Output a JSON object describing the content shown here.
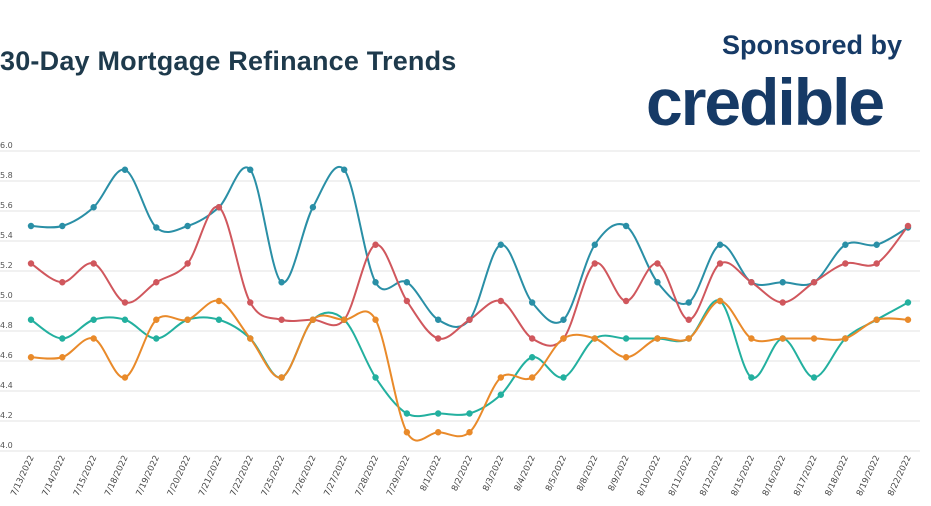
{
  "header": {
    "title": "30-Day Mortgage Refinance Trends",
    "sponsor_text": "Sponsored by",
    "sponsor_brand": "credible"
  },
  "chart_data": {
    "type": "line",
    "title": "30-Day Mortgage Refinance Trends",
    "xlabel": "",
    "ylabel": "",
    "ylim": [
      4.0,
      6.0
    ],
    "yticks": [
      "6.0",
      "5.8",
      "5.6",
      "5.4",
      "5.2",
      "5.0",
      "4.8",
      "4.6",
      "4.4",
      "4.2",
      "4.0"
    ],
    "grid": true,
    "categories": [
      "7/13/2022",
      "7/14/2022",
      "7/15/2022",
      "7/18/2022",
      "7/19/2022",
      "7/20/2022",
      "7/21/2022",
      "7/22/2022",
      "7/25/2022",
      "7/26/2022",
      "7/27/2022",
      "7/28/2022",
      "7/29/2022",
      "8/1/2022",
      "8/2/2022",
      "8/3/2022",
      "8/4/2022",
      "8/5/2022",
      "8/8/2022",
      "8/9/2022",
      "8/10/2022",
      "8/11/2022",
      "8/12/2022",
      "8/15/2022",
      "8/16/2022",
      "8/17/2022",
      "8/18/2022",
      "8/19/2022",
      "8/22/2022"
    ],
    "series": [
      {
        "color": "#2a8fa6",
        "values": [
          5.5,
          5.5,
          5.625,
          5.875,
          5.49,
          5.5,
          5.625,
          5.875,
          5.125,
          5.625,
          5.875,
          5.125,
          5.125,
          4.875,
          4.875,
          5.375,
          4.99,
          4.875,
          5.375,
          5.5,
          5.125,
          4.99,
          5.375,
          5.125,
          5.125,
          5.125,
          5.375,
          5.375,
          5.49
        ]
      },
      {
        "color": "#d0575d",
        "values": [
          5.25,
          5.125,
          5.25,
          4.99,
          5.125,
          5.25,
          5.625,
          4.99,
          4.875,
          4.875,
          4.875,
          5.375,
          5.0,
          4.75,
          4.875,
          5.0,
          4.75,
          4.75,
          5.25,
          5.0,
          5.25,
          4.875,
          5.25,
          5.125,
          4.99,
          5.125,
          5.25,
          5.25,
          5.5
        ]
      },
      {
        "color": "#23b09f",
        "values": [
          4.875,
          4.75,
          4.875,
          4.875,
          4.75,
          4.875,
          4.875,
          4.75,
          4.49,
          4.875,
          4.875,
          4.49,
          4.25,
          4.25,
          4.25,
          4.375,
          4.625,
          4.49,
          4.75,
          4.75,
          4.75,
          4.75,
          5.0,
          4.49,
          4.75,
          4.49,
          4.75,
          4.875,
          4.99
        ]
      },
      {
        "color": "#e98a2a",
        "values": [
          4.625,
          4.625,
          4.75,
          4.49,
          4.875,
          4.875,
          5.0,
          4.75,
          4.49,
          4.875,
          4.875,
          4.875,
          4.125,
          4.125,
          4.125,
          4.49,
          4.49,
          4.75,
          4.75,
          4.625,
          4.75,
          4.75,
          5.0,
          4.75,
          4.75,
          4.75,
          4.75,
          4.875,
          4.875
        ]
      }
    ]
  }
}
